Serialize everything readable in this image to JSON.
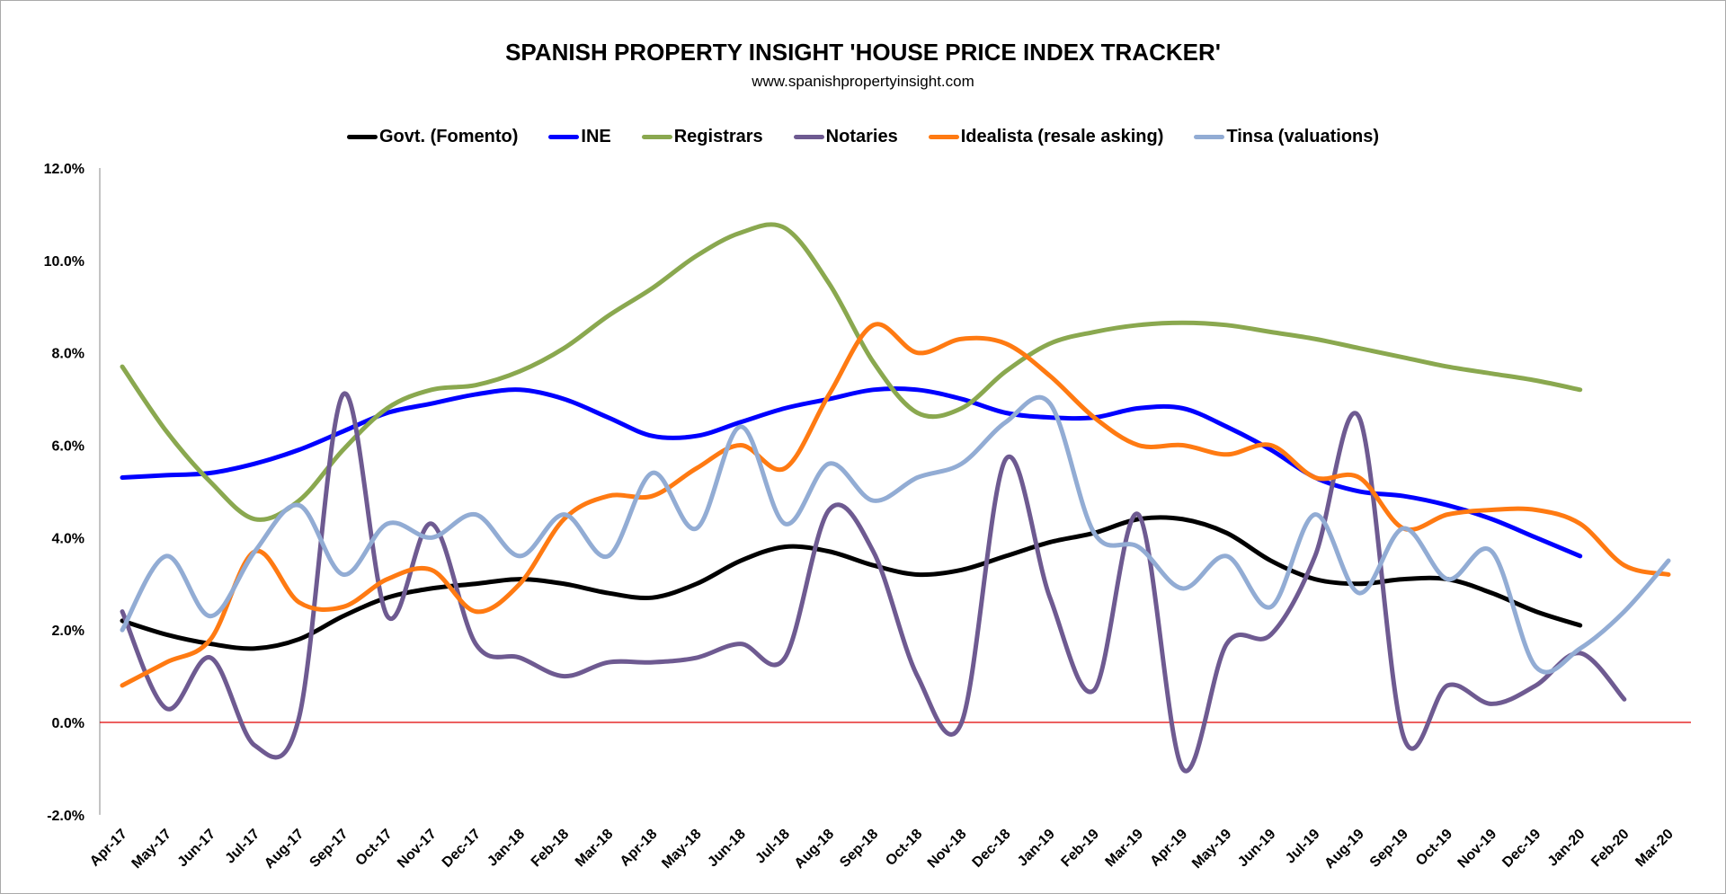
{
  "chart_data": {
    "type": "line",
    "title": "SPANISH PROPERTY INSIGHT 'HOUSE PRICE INDEX TRACKER'",
    "subtitle": "www.spanishpropertyinsight.com",
    "xlabel": "",
    "ylabel": "",
    "ylim": [
      -2,
      12
    ],
    "yticks": [
      "-2.0%",
      "0.0%",
      "2.0%",
      "4.0%",
      "6.0%",
      "8.0%",
      "10.0%",
      "12.0%"
    ],
    "ytick_values": [
      -2,
      0,
      2,
      4,
      6,
      8,
      10,
      12
    ],
    "reference_line": {
      "y": 0,
      "color": "#e00000"
    },
    "grid": false,
    "legend": "top",
    "categories": [
      "Apr-17",
      "May-17",
      "Jun-17",
      "Jul-17",
      "Aug-17",
      "Sep-17",
      "Oct-17",
      "Nov-17",
      "Dec-17",
      "Jan-18",
      "Feb-18",
      "Mar-18",
      "Apr-18",
      "May-18",
      "Jun-18",
      "Jul-18",
      "Aug-18",
      "Sep-18",
      "Oct-18",
      "Nov-18",
      "Dec-18",
      "Jan-19",
      "Feb-19",
      "Mar-19",
      "Apr-19",
      "May-19",
      "Jun-19",
      "Jul-19",
      "Aug-19",
      "Sep-19",
      "Oct-19",
      "Nov-19",
      "Dec-19",
      "Jan-20",
      "Feb-20",
      "Mar-20"
    ],
    "series": [
      {
        "name": "Govt. (Fomento)",
        "color": "#000000",
        "values": [
          2.2,
          1.9,
          1.7,
          1.6,
          1.8,
          2.3,
          2.7,
          2.9,
          3.0,
          3.1,
          3.0,
          2.8,
          2.7,
          3.0,
          3.5,
          3.8,
          3.7,
          3.4,
          3.2,
          3.3,
          3.6,
          3.9,
          4.1,
          4.4,
          4.4,
          4.1,
          3.5,
          3.1,
          3.0,
          3.1,
          3.1,
          2.8,
          2.4,
          2.1,
          null,
          null
        ]
      },
      {
        "name": "INE",
        "color": "#0000ff",
        "values": [
          5.3,
          5.35,
          5.4,
          5.6,
          5.9,
          6.3,
          6.7,
          6.9,
          7.1,
          7.2,
          7.0,
          6.6,
          6.2,
          6.2,
          6.5,
          6.8,
          7.0,
          7.2,
          7.2,
          7.0,
          6.7,
          6.6,
          6.6,
          6.8,
          6.8,
          6.4,
          5.9,
          5.3,
          5.0,
          4.9,
          4.7,
          4.4,
          4.0,
          3.6,
          null,
          null
        ]
      },
      {
        "name": "Registrars",
        "color": "#8aa84f",
        "values": [
          7.7,
          6.3,
          5.2,
          4.4,
          4.8,
          5.9,
          6.8,
          7.2,
          7.3,
          7.6,
          8.1,
          8.8,
          9.4,
          10.1,
          10.6,
          10.7,
          9.5,
          7.8,
          6.7,
          6.8,
          7.6,
          8.2,
          8.45,
          8.6,
          8.65,
          8.6,
          8.45,
          8.3,
          8.1,
          7.9,
          7.7,
          7.55,
          7.4,
          7.2,
          null,
          null
        ]
      },
      {
        "name": "Notaries",
        "color": "#6e5a91",
        "values": [
          2.4,
          0.3,
          1.4,
          -0.5,
          0.1,
          7.1,
          2.3,
          4.3,
          1.7,
          1.4,
          1.0,
          1.3,
          1.3,
          1.4,
          1.7,
          1.4,
          4.6,
          3.7,
          1.0,
          0.0,
          5.7,
          2.7,
          0.7,
          4.5,
          -1.0,
          1.7,
          1.9,
          3.6,
          6.6,
          -0.3,
          0.8,
          0.4,
          0.8,
          1.5,
          0.5,
          null
        ]
      },
      {
        "name": "Idealista (resale asking)",
        "color": "#ff7a12",
        "values": [
          0.8,
          1.3,
          1.8,
          3.7,
          2.6,
          2.5,
          3.1,
          3.3,
          2.4,
          3.0,
          4.4,
          4.9,
          4.9,
          5.5,
          6.0,
          5.5,
          7.1,
          8.6,
          8.0,
          8.3,
          8.2,
          7.5,
          6.6,
          6.0,
          6.0,
          5.8,
          6.0,
          5.3,
          5.3,
          4.2,
          4.5,
          4.6,
          4.6,
          4.3,
          3.4,
          3.2
        ]
      },
      {
        "name": "Tinsa (valuations)",
        "color": "#92acd4",
        "values": [
          2.0,
          3.6,
          2.3,
          3.7,
          4.7,
          3.2,
          4.3,
          4.0,
          4.5,
          3.6,
          4.5,
          3.6,
          5.4,
          4.2,
          6.4,
          4.3,
          5.6,
          4.8,
          5.3,
          5.6,
          6.5,
          6.9,
          4.1,
          3.8,
          2.9,
          3.6,
          2.5,
          4.5,
          2.8,
          4.2,
          3.1,
          3.7,
          1.2,
          1.6,
          2.4,
          3.5
        ]
      }
    ]
  }
}
